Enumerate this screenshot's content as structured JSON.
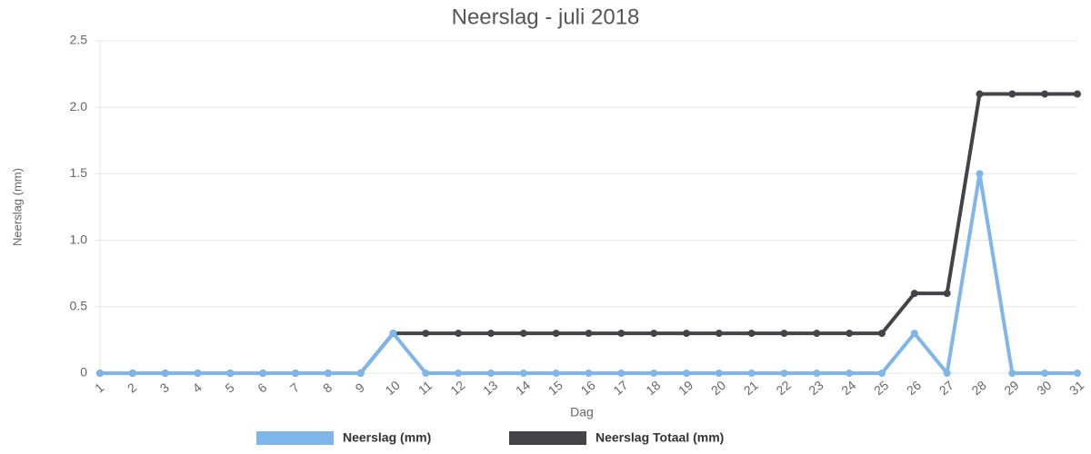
{
  "chart_data": {
    "type": "line",
    "title": "Neerslag - juli 2018",
    "x_label": "Dag",
    "y_label": "Neerslag (mm)",
    "categories": [
      "1",
      "2",
      "3",
      "4",
      "5",
      "6",
      "7",
      "8",
      "9",
      "10",
      "11",
      "12",
      "13",
      "14",
      "15",
      "16",
      "17",
      "18",
      "19",
      "20",
      "21",
      "22",
      "23",
      "24",
      "25",
      "26",
      "27",
      "28",
      "29",
      "30",
      "31"
    ],
    "series": [
      {
        "name": "Neerslag (mm)",
        "color": "#7eb6ea",
        "values": [
          0,
          0,
          0,
          0,
          0,
          0,
          0,
          0,
          0,
          0.3,
          0,
          0,
          0,
          0,
          0,
          0,
          0,
          0,
          0,
          0,
          0,
          0,
          0,
          0,
          0,
          0.3,
          0,
          1.5,
          0,
          0,
          0
        ]
      },
      {
        "name": "Neerslag Totaal (mm)",
        "color": "#434348",
        "values": [
          0,
          0,
          0,
          0,
          0,
          0,
          0,
          0,
          0,
          0.3,
          0.3,
          0.3,
          0.3,
          0.3,
          0.3,
          0.3,
          0.3,
          0.3,
          0.3,
          0.3,
          0.3,
          0.3,
          0.3,
          0.3,
          0.3,
          0.6,
          0.6,
          2.1,
          2.1,
          2.1,
          2.1
        ]
      }
    ],
    "ylim": [
      0,
      2.5
    ],
    "yticks": [
      0,
      0.5,
      {
        "value": 1,
        "label": "1.0"
      },
      1.5,
      {
        "value": 2,
        "label": "2.0"
      },
      2.5
    ],
    "grid": true,
    "legend": "bottom"
  }
}
